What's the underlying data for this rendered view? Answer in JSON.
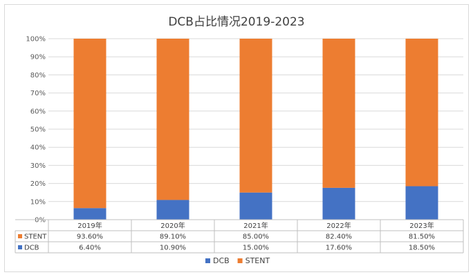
{
  "chart_data": {
    "type": "bar",
    "stacked": "percent",
    "title": "DCB占比情况2019-2023",
    "categories": [
      "2019年",
      "2020年",
      "2021年",
      "2022年",
      "2023年"
    ],
    "y_ticks": [
      "0%",
      "10%",
      "20%",
      "30%",
      "40%",
      "50%",
      "60%",
      "70%",
      "80%",
      "90%",
      "100%"
    ],
    "ylim": [
      0,
      100
    ],
    "grid": true,
    "legend_placement": "bottom",
    "series": [
      {
        "name": "DCB",
        "color": "#4472c4",
        "values": [
          6.4,
          10.9,
          15.0,
          17.6,
          18.5
        ],
        "labels": [
          "6.40%",
          "10.90%",
          "15.00%",
          "17.60%",
          "18.50%"
        ]
      },
      {
        "name": "STENT",
        "color": "#ed7d31",
        "values": [
          93.6,
          89.1,
          85.0,
          82.4,
          81.5
        ],
        "labels": [
          "93.60%",
          "89.10%",
          "85.00%",
          "82.40%",
          "81.50%"
        ]
      }
    ],
    "table_rows": [
      "STENT",
      "DCB"
    ]
  }
}
